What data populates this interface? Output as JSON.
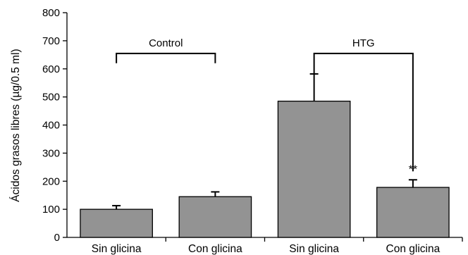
{
  "chart_data": {
    "type": "bar",
    "ylabel": "Ácidos grasos libres (µg/0.5 ml)",
    "xlabel": "",
    "ylim": [
      0,
      800
    ],
    "yticks": [
      0,
      100,
      200,
      300,
      400,
      500,
      600,
      700,
      800
    ],
    "categories": [
      "Sin glicina",
      "Con glicina",
      "Sin glicina",
      "Con glicina"
    ],
    "values": [
      100,
      145,
      485,
      178
    ],
    "errors": [
      13,
      17,
      97,
      27
    ],
    "bar_color": "#939393",
    "groups": [
      {
        "label": "Control",
        "bars": [
          0,
          1
        ]
      },
      {
        "label": "HTG",
        "bars": [
          2,
          3
        ]
      }
    ],
    "annotations": [
      {
        "bar": 3,
        "text": "**"
      }
    ],
    "grid": false
  }
}
